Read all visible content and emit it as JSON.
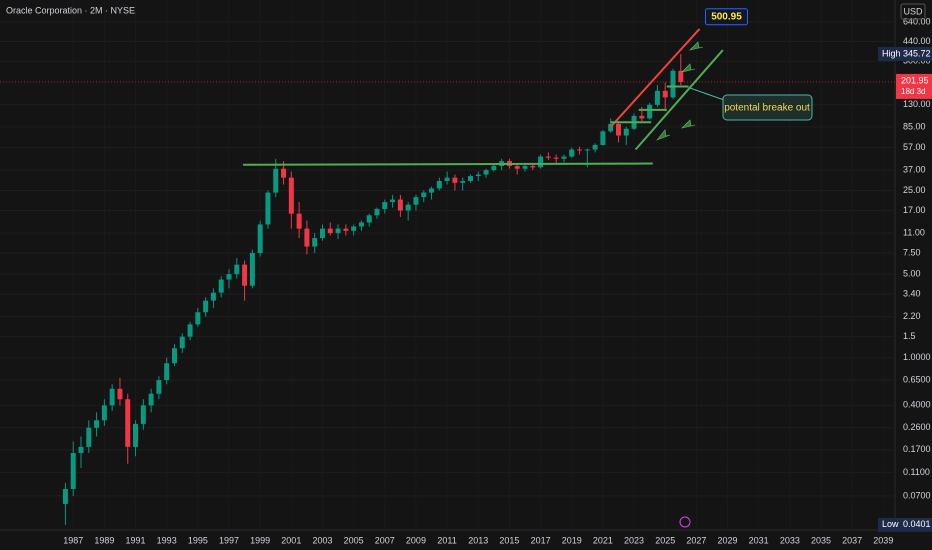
{
  "chart_data": {
    "type": "candlestick",
    "title": "Oracle Corporation · 2M · NYSE",
    "currency": "USD",
    "scale": "log",
    "grid": true,
    "up_color": "#089981",
    "down_color": "#f23645",
    "xlim": [
      1982.3,
      2039.75
    ],
    "xticks": [
      1987,
      1989,
      1991,
      1993,
      1995,
      1997,
      1999,
      2001,
      2003,
      2005,
      2007,
      2009,
      2011,
      2013,
      2015,
      2017,
      2019,
      2021,
      2023,
      2025,
      2027,
      2029,
      2031,
      2033,
      2035,
      2037,
      2039
    ],
    "ylim": [
      0.04,
      977
    ],
    "yticks": [
      {
        "value": 640,
        "label": "640.00"
      },
      {
        "value": 440,
        "label": "440.00"
      },
      {
        "value": 300,
        "label": "300.00"
      },
      {
        "value": 130,
        "label": "130.00"
      },
      {
        "value": 85,
        "label": "85.00"
      },
      {
        "value": 57,
        "label": "57.00"
      },
      {
        "value": 37,
        "label": "37.00"
      },
      {
        "value": 25,
        "label": "25.00"
      },
      {
        "value": 17,
        "label": "17.00"
      },
      {
        "value": 11,
        "label": "11.00"
      },
      {
        "value": 7.5,
        "label": "7.50"
      },
      {
        "value": 5,
        "label": "5.00"
      },
      {
        "value": 3.4,
        "label": "3.40"
      },
      {
        "value": 2.2,
        "label": "2.20"
      },
      1.5,
      {
        "value": 1,
        "label": "1.0000"
      },
      {
        "value": 0.65,
        "label": "0.6500"
      },
      {
        "value": 0.4,
        "label": "0.4000"
      },
      {
        "value": 0.26,
        "label": "0.2600"
      },
      {
        "value": 0.17,
        "label": "0.1700"
      },
      {
        "value": 0.11,
        "label": "0.1100"
      },
      {
        "value": 0.07,
        "label": "0.0700"
      }
    ],
    "candles": [
      {
        "x": 1986.5,
        "open": 0.06,
        "high": 0.09,
        "low": 0.0401,
        "close": 0.08
      },
      {
        "x": 1987,
        "open": 0.08,
        "high": 0.2,
        "low": 0.07,
        "close": 0.16
      },
      {
        "x": 1987.5,
        "open": 0.16,
        "high": 0.22,
        "low": 0.12,
        "close": 0.18
      },
      {
        "x": 1988,
        "open": 0.18,
        "high": 0.3,
        "low": 0.16,
        "close": 0.26
      },
      {
        "x": 1988.5,
        "open": 0.26,
        "high": 0.35,
        "low": 0.22,
        "close": 0.3
      },
      {
        "x": 1989,
        "open": 0.3,
        "high": 0.45,
        "low": 0.27,
        "close": 0.4
      },
      {
        "x": 1989.5,
        "open": 0.4,
        "high": 0.6,
        "low": 0.36,
        "close": 0.55
      },
      {
        "x": 1990,
        "open": 0.55,
        "high": 0.68,
        "low": 0.4,
        "close": 0.45
      },
      {
        "x": 1990.5,
        "open": 0.45,
        "high": 0.5,
        "low": 0.13,
        "close": 0.18
      },
      {
        "x": 1991,
        "open": 0.18,
        "high": 0.3,
        "low": 0.15,
        "close": 0.28
      },
      {
        "x": 1991.5,
        "open": 0.28,
        "high": 0.45,
        "low": 0.25,
        "close": 0.4
      },
      {
        "x": 1992,
        "open": 0.4,
        "high": 0.55,
        "low": 0.35,
        "close": 0.5
      },
      {
        "x": 1992.5,
        "open": 0.5,
        "high": 0.7,
        "low": 0.45,
        "close": 0.65
      },
      {
        "x": 1993,
        "open": 0.65,
        "high": 1.0,
        "low": 0.6,
        "close": 0.9
      },
      {
        "x": 1993.5,
        "open": 0.9,
        "high": 1.3,
        "low": 0.85,
        "close": 1.2
      },
      {
        "x": 1994,
        "open": 1.2,
        "high": 1.6,
        "low": 1.1,
        "close": 1.5
      },
      {
        "x": 1994.5,
        "open": 1.5,
        "high": 2.0,
        "low": 1.4,
        "close": 1.9
      },
      {
        "x": 1995,
        "open": 1.9,
        "high": 2.6,
        "low": 1.8,
        "close": 2.4
      },
      {
        "x": 1995.5,
        "open": 2.4,
        "high": 3.2,
        "low": 2.2,
        "close": 3.0
      },
      {
        "x": 1996,
        "open": 3.0,
        "high": 3.8,
        "low": 2.6,
        "close": 3.5
      },
      {
        "x": 1996.5,
        "open": 3.5,
        "high": 4.8,
        "low": 3.2,
        "close": 4.5
      },
      {
        "x": 1997,
        "open": 4.5,
        "high": 5.5,
        "low": 3.8,
        "close": 5.0
      },
      {
        "x": 1997.5,
        "open": 5.0,
        "high": 6.8,
        "low": 4.6,
        "close": 6.0
      },
      {
        "x": 1998,
        "open": 6.0,
        "high": 6.5,
        "low": 3.0,
        "close": 4.0
      },
      {
        "x": 1998.5,
        "open": 4.0,
        "high": 8.0,
        "low": 3.8,
        "close": 7.5
      },
      {
        "x": 1999,
        "open": 7.5,
        "high": 14,
        "low": 7,
        "close": 13
      },
      {
        "x": 1999.5,
        "open": 13,
        "high": 25,
        "low": 12,
        "close": 24
      },
      {
        "x": 2000,
        "open": 24,
        "high": 46,
        "low": 22,
        "close": 38
      },
      {
        "x": 2000.5,
        "open": 38,
        "high": 44,
        "low": 28,
        "close": 32
      },
      {
        "x": 2001,
        "open": 32,
        "high": 36,
        "low": 12,
        "close": 16
      },
      {
        "x": 2001.5,
        "open": 16,
        "high": 20,
        "low": 10,
        "close": 12
      },
      {
        "x": 2002,
        "open": 12,
        "high": 14,
        "low": 7.3,
        "close": 8.5
      },
      {
        "x": 2002.5,
        "open": 8.5,
        "high": 11,
        "low": 7.5,
        "close": 10
      },
      {
        "x": 2003,
        "open": 10,
        "high": 13,
        "low": 9.5,
        "close": 12
      },
      {
        "x": 2003.5,
        "open": 12,
        "high": 13.5,
        "low": 10.5,
        "close": 11
      },
      {
        "x": 2004,
        "open": 11,
        "high": 13,
        "low": 9.8,
        "close": 12
      },
      {
        "x": 2004.5,
        "open": 12,
        "high": 13,
        "low": 10.5,
        "close": 11.5
      },
      {
        "x": 2005,
        "open": 11.5,
        "high": 13,
        "low": 10.5,
        "close": 12.5
      },
      {
        "x": 2005.5,
        "open": 12.5,
        "high": 14,
        "low": 11.5,
        "close": 13.5
      },
      {
        "x": 2006,
        "open": 13.5,
        "high": 16,
        "low": 12.5,
        "close": 15.5
      },
      {
        "x": 2006.5,
        "open": 15.5,
        "high": 18,
        "low": 14.5,
        "close": 17.5
      },
      {
        "x": 2007,
        "open": 17.5,
        "high": 21,
        "low": 16,
        "close": 20
      },
      {
        "x": 2007.5,
        "open": 20,
        "high": 23,
        "low": 18,
        "close": 21
      },
      {
        "x": 2008,
        "open": 21,
        "high": 23,
        "low": 15,
        "close": 17
      },
      {
        "x": 2008.5,
        "open": 17,
        "high": 20,
        "low": 14,
        "close": 19
      },
      {
        "x": 2009,
        "open": 19,
        "high": 23,
        "low": 17,
        "close": 22
      },
      {
        "x": 2009.5,
        "open": 22,
        "high": 25,
        "low": 20,
        "close": 24
      },
      {
        "x": 2010,
        "open": 24,
        "high": 27,
        "low": 21,
        "close": 26
      },
      {
        "x": 2010.5,
        "open": 26,
        "high": 32,
        "low": 25,
        "close": 30
      },
      {
        "x": 2011,
        "open": 30,
        "high": 36,
        "low": 28,
        "close": 32
      },
      {
        "x": 2011.5,
        "open": 32,
        "high": 34,
        "low": 25,
        "close": 29
      },
      {
        "x": 2012,
        "open": 29,
        "high": 32,
        "low": 25,
        "close": 30
      },
      {
        "x": 2012.5,
        "open": 30,
        "high": 34,
        "low": 29,
        "close": 33
      },
      {
        "x": 2013,
        "open": 33,
        "high": 36,
        "low": 30,
        "close": 34
      },
      {
        "x": 2013.5,
        "open": 34,
        "high": 38,
        "low": 32,
        "close": 37
      },
      {
        "x": 2014,
        "open": 37,
        "high": 42,
        "low": 36,
        "close": 40
      },
      {
        "x": 2014.5,
        "open": 40,
        "high": 46,
        "low": 37,
        "close": 44
      },
      {
        "x": 2015,
        "open": 44,
        "high": 46,
        "low": 38,
        "close": 40
      },
      {
        "x": 2015.5,
        "open": 40,
        "high": 42,
        "low": 34,
        "close": 38
      },
      {
        "x": 2016,
        "open": 38,
        "high": 42,
        "low": 36,
        "close": 40
      },
      {
        "x": 2016.5,
        "open": 40,
        "high": 42,
        "low": 37,
        "close": 39
      },
      {
        "x": 2017,
        "open": 39,
        "high": 50,
        "low": 38,
        "close": 48
      },
      {
        "x": 2017.5,
        "open": 48,
        "high": 52,
        "low": 45,
        "close": 47
      },
      {
        "x": 2018,
        "open": 47,
        "high": 50,
        "low": 42,
        "close": 46
      },
      {
        "x": 2018.5,
        "open": 46,
        "high": 50,
        "low": 43,
        "close": 48
      },
      {
        "x": 2019,
        "open": 48,
        "high": 57,
        "low": 47,
        "close": 55
      },
      {
        "x": 2019.5,
        "open": 55,
        "high": 58,
        "low": 50,
        "close": 54
      },
      {
        "x": 2020,
        "open": 54,
        "high": 56,
        "low": 39,
        "close": 55
      },
      {
        "x": 2020.5,
        "open": 55,
        "high": 62,
        "low": 52,
        "close": 60
      },
      {
        "x": 2021,
        "open": 60,
        "high": 80,
        "low": 59,
        "close": 78
      },
      {
        "x": 2021.5,
        "open": 78,
        "high": 100,
        "low": 76,
        "close": 90
      },
      {
        "x": 2022,
        "open": 90,
        "high": 95,
        "low": 63,
        "close": 72
      },
      {
        "x": 2022.5,
        "open": 72,
        "high": 85,
        "low": 60,
        "close": 82
      },
      {
        "x": 2023,
        "open": 82,
        "high": 110,
        "low": 80,
        "close": 105
      },
      {
        "x": 2023.5,
        "open": 105,
        "high": 125,
        "low": 95,
        "close": 100
      },
      {
        "x": 2024,
        "open": 100,
        "high": 135,
        "low": 98,
        "close": 130
      },
      {
        "x": 2024.5,
        "open": 130,
        "high": 190,
        "low": 125,
        "close": 170
      },
      {
        "x": 2025,
        "open": 170,
        "high": 200,
        "low": 120,
        "close": 150
      },
      {
        "x": 2025.5,
        "open": 150,
        "high": 260,
        "low": 145,
        "close": 250
      },
      {
        "x": 2026,
        "open": 250,
        "high": 345.72,
        "low": 190,
        "close": 201.95
      }
    ],
    "high_label": "High",
    "low_label": "Low",
    "countdown": "18d 3d",
    "lines": [
      {
        "color": "#4caf50",
        "points": [
          [
            1997.9,
            41
          ],
          [
            2024.2,
            42
          ]
        ]
      },
      {
        "color": "#f44336",
        "points": [
          [
            2021.5,
            85
          ],
          [
            2027.2,
            560
          ]
        ]
      },
      {
        "color": "#4caf50",
        "points": [
          [
            2023.1,
            55
          ],
          [
            2028.7,
            373
          ]
        ]
      },
      {
        "color": "#4caf50",
        "points": [
          [
            2021.5,
            93
          ],
          [
            2024.1,
            93
          ]
        ]
      },
      {
        "color": "#4caf50",
        "points": [
          [
            2023.3,
            118
          ],
          [
            2025.1,
            118
          ]
        ]
      },
      {
        "color": "#4caf50",
        "points": [
          [
            2025.1,
            185
          ],
          [
            2026.5,
            185
          ]
        ]
      }
    ],
    "target": {
      "value": 500.95,
      "color": "#2962ff"
    },
    "annotation": "potental breake out"
  }
}
